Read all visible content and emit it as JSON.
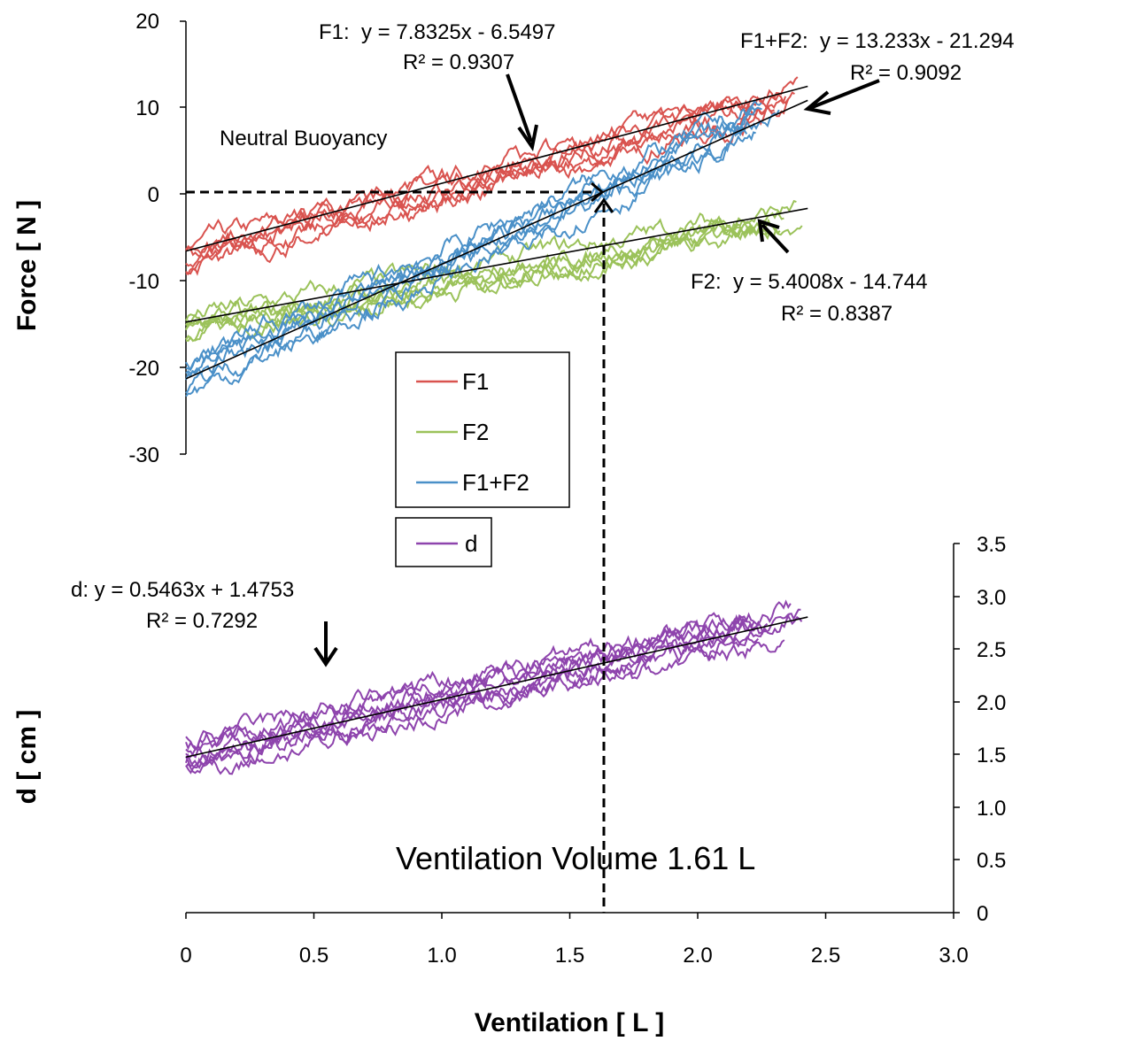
{
  "chart_data": [
    {
      "type": "line",
      "panel": "force",
      "ylabel": "Force [ N ]",
      "ylim": [
        -30,
        20
      ],
      "yticks": [
        "20",
        "10",
        "0",
        "-10",
        "-20",
        "-30"
      ],
      "xlim": [
        0,
        3
      ],
      "series": [
        {
          "name": "F1",
          "color": "#d9534f",
          "runs": 6,
          "x": [
            0.0,
            0.25,
            0.5,
            0.75,
            1.0,
            1.25,
            1.5,
            1.75,
            2.0,
            2.25,
            2.43
          ],
          "values": [
            -6.5,
            -4.5,
            -2.6,
            -0.6,
            1.3,
            3.3,
            5.2,
            7.2,
            9.1,
            11.1,
            12.5
          ]
        },
        {
          "name": "F2",
          "color": "#9bc25a",
          "runs": 6,
          "x": [
            0.0,
            0.25,
            0.5,
            0.75,
            1.0,
            1.25,
            1.5,
            1.75,
            2.0,
            2.25,
            2.43
          ],
          "values": [
            -14.7,
            -13.4,
            -12.0,
            -10.7,
            -9.3,
            -8.0,
            -6.6,
            -5.3,
            -3.9,
            -2.6,
            -1.6
          ]
        },
        {
          "name": "F1+F2",
          "color": "#4a90c8",
          "runs": 6,
          "x": [
            0.0,
            0.25,
            0.5,
            0.75,
            1.0,
            1.25,
            1.5,
            1.75,
            2.0,
            2.25,
            2.43
          ],
          "values": [
            -21.3,
            -18.0,
            -14.7,
            -11.4,
            -8.1,
            -4.8,
            -1.4,
            1.9,
            5.2,
            8.5,
            10.9
          ]
        }
      ],
      "trendlines": [
        {
          "series": "F1",
          "slope": 7.8325,
          "intercept": -6.5497,
          "x_range": [
            0,
            2.43
          ]
        },
        {
          "series": "F2",
          "slope": 5.4008,
          "intercept": -14.744,
          "x_range": [
            0,
            2.43
          ]
        },
        {
          "series": "F1+F2",
          "slope": 13.233,
          "intercept": -21.294,
          "x_range": [
            0,
            2.43
          ]
        }
      ],
      "annotations": {
        "f1_equation": "F1:  y = 7.8325x - 6.5497",
        "f1_r2": "R² = 0.9307",
        "sum_equation": "F1+F2:  y = 13.233x - 21.294",
        "sum_r2": "R² = 0.9092",
        "f2_equation": "F2:  y = 5.4008x - 14.744",
        "f2_r2": "R² = 0.8387",
        "neutral_buoyancy": "Neutral Buoyancy"
      },
      "neutral_buoyancy_point": {
        "x": 1.61,
        "y": 0
      }
    },
    {
      "type": "line",
      "panel": "d",
      "ylabel": "d [ cm ]",
      "ylim": [
        0,
        3.5
      ],
      "yticks": [
        "3.5",
        "3.0",
        "2.5",
        "2.0",
        "1.5",
        "1.0",
        "0.5",
        "0"
      ],
      "xlabel": "Ventilation [ L ]",
      "xlim": [
        0,
        3
      ],
      "xticks": [
        "0",
        "0.5",
        "1.0",
        "1.5",
        "2.0",
        "2.5",
        "3.0"
      ],
      "series": [
        {
          "name": "d",
          "color": "#8e44ad",
          "runs": 8,
          "x": [
            0.0,
            0.25,
            0.5,
            0.75,
            1.0,
            1.25,
            1.5,
            1.75,
            2.0,
            2.25,
            2.43
          ],
          "values": [
            1.48,
            1.61,
            1.75,
            1.89,
            2.02,
            2.16,
            2.29,
            2.43,
            2.57,
            2.7,
            2.8
          ]
        }
      ],
      "trendlines": [
        {
          "series": "d",
          "slope": 0.5463,
          "intercept": 1.4753,
          "x_range": [
            0,
            2.43
          ]
        }
      ],
      "annotations": {
        "d_equation": "d: y = 0.5463x + 1.4753",
        "d_r2": "R² = 0.7292",
        "ventilation_volume": "Ventilation Volume 1.61 L"
      }
    }
  ]
}
